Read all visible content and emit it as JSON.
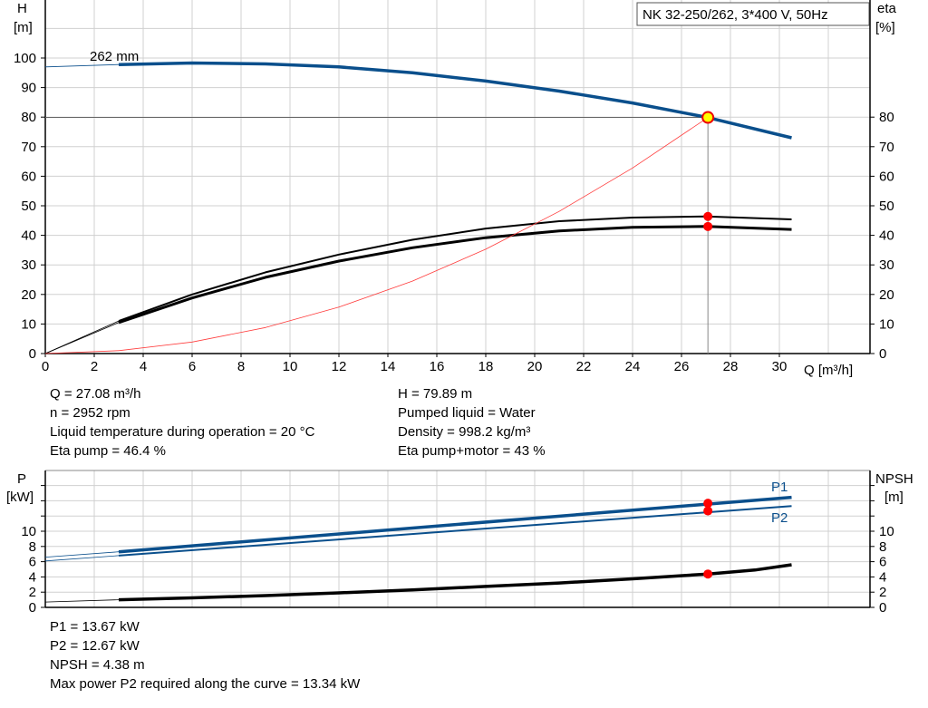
{
  "chart_data": [
    {
      "type": "line",
      "title": "NK 32-250/262, 3*400 V, 50Hz",
      "xlabel": "Q [m³/h]",
      "ylabel": "H\n[m]",
      "y2label": "eta\n[%]",
      "xlim": [
        0,
        33.7
      ],
      "ylim": [
        0,
        120
      ],
      "grid": true,
      "xticks": [
        0,
        2,
        4,
        6,
        8,
        10,
        12,
        14,
        16,
        18,
        20,
        22,
        24,
        26,
        28,
        30
      ],
      "yticks": [
        0,
        10,
        20,
        30,
        40,
        50,
        60,
        70,
        80,
        90,
        100
      ],
      "y2ticks": [
        0,
        10,
        20,
        30,
        40,
        50,
        60,
        70,
        80
      ],
      "curve_label": "262 mm",
      "series": [
        {
          "key": "H",
          "color": "#0a4f8c",
          "x": [
            0,
            3,
            6,
            9,
            12,
            15,
            18,
            21,
            24,
            27,
            30.5
          ],
          "y": [
            97,
            97.8,
            98.3,
            98,
            97,
            95,
            92.2,
            88.8,
            84.8,
            80,
            73
          ]
        },
        {
          "key": "eta_pump",
          "color": "#000000",
          "x": [
            0,
            3,
            6,
            9,
            12,
            15,
            18,
            21,
            24,
            27,
            30.5
          ],
          "y": [
            0,
            11,
            20,
            27.5,
            33.5,
            38.5,
            42.3,
            44.8,
            46,
            46.4,
            45.4
          ]
        },
        {
          "key": "eta_pump_motor",
          "color": "#000000",
          "x": [
            0,
            3,
            6,
            9,
            12,
            15,
            18,
            21,
            24,
            27,
            30.5
          ],
          "y": [
            0,
            10.5,
            18.8,
            25.8,
            31.3,
            35.8,
            39.2,
            41.5,
            42.7,
            43,
            42
          ]
        },
        {
          "key": "system",
          "color": "#ff3b3b",
          "x": [
            0,
            3,
            6,
            9,
            12,
            15,
            18,
            21,
            24,
            27.08
          ],
          "y": [
            0,
            0.98,
            3.9,
            8.8,
            15.7,
            24.5,
            35.3,
            48.1,
            62.8,
            79.89
          ]
        }
      ],
      "operating_point": {
        "Q": 27.08,
        "H": 79.89,
        "eta_pump": 46.4,
        "eta_pump_motor": 43
      }
    },
    {
      "type": "line",
      "ylabel": "P\n[kW]",
      "y2label": "NPSH\n[m]",
      "xlim": [
        0,
        33.7
      ],
      "ylim": [
        0,
        18
      ],
      "grid": true,
      "yticks": [
        0,
        2,
        4,
        6,
        8,
        10
      ],
      "y2ticks": [
        0,
        2,
        4,
        6,
        8,
        10
      ],
      "series": [
        {
          "name": "P1",
          "color": "#0a4f8c",
          "x": [
            0,
            3,
            30.5
          ],
          "y": [
            6.6,
            7.3,
            14.45
          ]
        },
        {
          "name": "P2",
          "color": "#0a4f8c",
          "x": [
            0,
            3,
            30.5
          ],
          "y": [
            6.1,
            6.8,
            13.3
          ]
        },
        {
          "key": "NPSH",
          "color": "#000000",
          "x": [
            0,
            3,
            6,
            9,
            12,
            15,
            18,
            21,
            24,
            27.08,
            29,
            30.5
          ],
          "y": [
            0.7,
            1.0,
            1.25,
            1.55,
            1.9,
            2.3,
            2.75,
            3.2,
            3.75,
            4.38,
            4.9,
            5.6
          ]
        }
      ],
      "operating_point": {
        "P1": 13.67,
        "P2": 12.67,
        "NPSH": 4.38
      }
    }
  ],
  "info1": [
    "Q = 27.08 m³/h",
    "n = 2952 rpm",
    "Liquid temperature during operation = 20 °C",
    "Eta pump = 46.4 %"
  ],
  "info2": [
    "H = 79.89 m",
    "Pumped liquid = Water",
    "Density = 998.2 kg/m³",
    "Eta pump+motor = 43 %"
  ],
  "info3": [
    "P1 = 13.67 kW",
    "P2 = 12.67 kW",
    "NPSH = 4.38 m",
    "Max power P2 required along the curve = 13.34 kW"
  ]
}
